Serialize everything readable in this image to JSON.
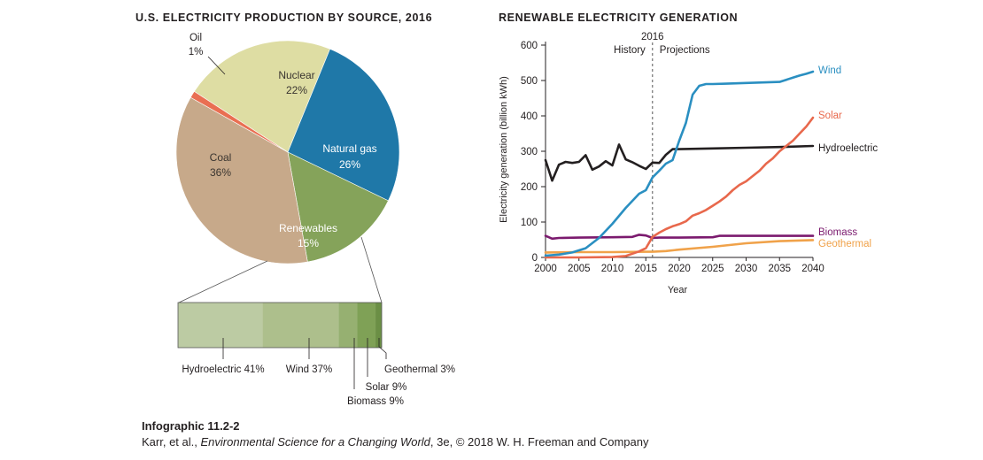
{
  "chart_data": [
    {
      "type": "pie",
      "title": "U.S. ELECTRICITY PRODUCTION BY SOURCE, 2016",
      "slices": [
        {
          "name": "Nuclear",
          "value": 22,
          "label": "22%",
          "color": "#dedda3"
        },
        {
          "name": "Natural gas",
          "value": 26,
          "label": "26%",
          "color": "#1f78a8"
        },
        {
          "name": "Renewables",
          "value": 15,
          "label": "15%",
          "color": "#85a35a"
        },
        {
          "name": "Coal",
          "value": 36,
          "label": "36%",
          "color": "#c7a98a"
        },
        {
          "name": "Oil",
          "value": 1,
          "label": "1%",
          "color": "#e96f52"
        }
      ],
      "breakdown": {
        "of": "Renewables",
        "segments": [
          {
            "name": "Hydroelectric",
            "value": 41,
            "label": "Hydroelectric 41%",
            "color": "#bccba3"
          },
          {
            "name": "Wind",
            "value": 37,
            "label": "Wind 37%",
            "color": "#adbf8c"
          },
          {
            "name": "Biomass",
            "value": 9,
            "label": "Biomass 9%",
            "color": "#96b071"
          },
          {
            "name": "Solar",
            "value": 9,
            "label": "Solar 9%",
            "color": "#7fa156"
          },
          {
            "name": "Geothermal",
            "value": 3,
            "label": "Geothermal 3%",
            "color": "#6b8f45"
          }
        ]
      }
    },
    {
      "type": "line",
      "title": "RENEWABLE ELECTRICITY GENERATION",
      "xlabel": "Year",
      "ylabel": "Electricity generation (billion kWh)",
      "xlim": [
        2000,
        2040
      ],
      "ylim": [
        0,
        600
      ],
      "xticks": [
        2000,
        2005,
        2010,
        2015,
        2020,
        2025,
        2030,
        2035,
        2040
      ],
      "yticks": [
        0,
        100,
        200,
        300,
        400,
        500,
        600
      ],
      "divider": {
        "x": 2016,
        "label": "2016",
        "left_label": "History",
        "right_label": "Projections"
      },
      "series": [
        {
          "name": "Wind",
          "color": "#2a8fc1",
          "x": [
            2000,
            2002,
            2004,
            2006,
            2008,
            2010,
            2012,
            2014,
            2015,
            2016,
            2017,
            2018,
            2019,
            2020,
            2021,
            2022,
            2023,
            2024,
            2025,
            2027,
            2030,
            2035,
            2036,
            2037,
            2038,
            2039,
            2040
          ],
          "y": [
            5,
            8,
            14,
            26,
            55,
            95,
            140,
            180,
            190,
            226,
            245,
            265,
            275,
            330,
            380,
            460,
            485,
            490,
            490,
            491,
            493,
            496,
            502,
            508,
            514,
            519,
            525
          ]
        },
        {
          "name": "Solar",
          "color": "#e8684c",
          "x": [
            2000,
            2005,
            2010,
            2012,
            2014,
            2015,
            2016,
            2017,
            2018,
            2019,
            2020,
            2021,
            2022,
            2023,
            2024,
            2025,
            2026,
            2027,
            2028,
            2029,
            2030,
            2031,
            2032,
            2033,
            2034,
            2035,
            2036,
            2037,
            2038,
            2039,
            2040
          ],
          "y": [
            0,
            0,
            1,
            4,
            17,
            26,
            58,
            70,
            80,
            88,
            94,
            102,
            118,
            125,
            134,
            146,
            158,
            172,
            190,
            205,
            215,
            230,
            245,
            265,
            280,
            300,
            315,
            330,
            350,
            370,
            395
          ]
        },
        {
          "name": "Hydroelectric",
          "color": "#231f20",
          "x": [
            2000,
            2001,
            2002,
            2003,
            2004,
            2005,
            2006,
            2007,
            2008,
            2009,
            2010,
            2011,
            2012,
            2013,
            2014,
            2015,
            2016,
            2017,
            2018,
            2019,
            2020,
            2025,
            2030,
            2035,
            2040
          ],
          "y": [
            275,
            217,
            262,
            270,
            267,
            270,
            289,
            248,
            257,
            272,
            260,
            319,
            277,
            269,
            259,
            250,
            268,
            267,
            290,
            306,
            306,
            308,
            310,
            312,
            315
          ]
        },
        {
          "name": "Biomass",
          "color": "#7b1a6e",
          "x": [
            2000,
            2001,
            2002,
            2005,
            2010,
            2013,
            2014,
            2015,
            2016,
            2017,
            2020,
            2025,
            2026,
            2030,
            2035,
            2040
          ],
          "y": [
            61,
            53,
            55,
            56,
            57,
            58,
            64,
            62,
            55,
            56,
            56,
            57,
            61,
            61,
            61,
            61
          ]
        },
        {
          "name": "Geothermal",
          "color": "#f0a24a",
          "x": [
            2000,
            2005,
            2010,
            2015,
            2016,
            2018,
            2020,
            2025,
            2030,
            2035,
            2040
          ],
          "y": [
            14,
            15,
            15,
            16,
            16,
            18,
            22,
            30,
            40,
            46,
            49
          ]
        }
      ]
    }
  ],
  "caption": {
    "title": "Infographic 11.2-2",
    "source_authors": "Karr, et al., ",
    "source_book": "Environmental Science for a Changing World",
    "source_rest": ", 3e, © 2018 W. H. Freeman and Company"
  }
}
